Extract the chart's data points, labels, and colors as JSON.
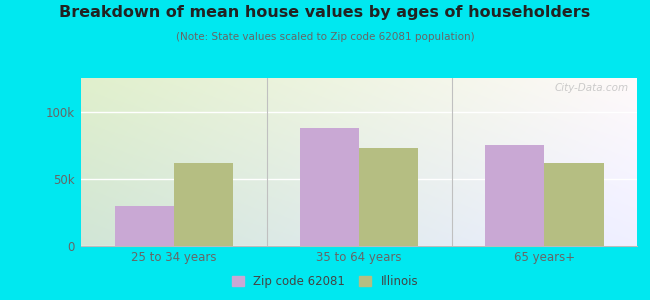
{
  "title": "Breakdown of mean house values by ages of householders",
  "subtitle": "(Note: State values scaled to Zip code 62081 population)",
  "categories": [
    "25 to 34 years",
    "35 to 64 years",
    "65 years+"
  ],
  "zip_values": [
    30000,
    88000,
    75000
  ],
  "state_values": [
    62000,
    73000,
    62000
  ],
  "zip_color": "#c9a8d4",
  "state_color": "#b5be82",
  "ylim": [
    0,
    125000
  ],
  "yticks": [
    0,
    50000,
    100000
  ],
  "ytick_labels": [
    "0",
    "50k",
    "100k"
  ],
  "bar_width": 0.32,
  "bg_color_topleft": "#c8e6b0",
  "bg_color_topright": "#e8f4e8",
  "bg_color_bottomleft": "#d8eec0",
  "bg_color_bottomright": "#ffffff",
  "outer_bg": "#00e8f0",
  "legend_zip": "Zip code 62081",
  "legend_state": "Illinois",
  "watermark": "City-Data.com",
  "grid_color": "#ffffff",
  "separator_color": "#c0c0c0",
  "tick_color": "#666666",
  "title_color": "#222222",
  "subtitle_color": "#666666"
}
